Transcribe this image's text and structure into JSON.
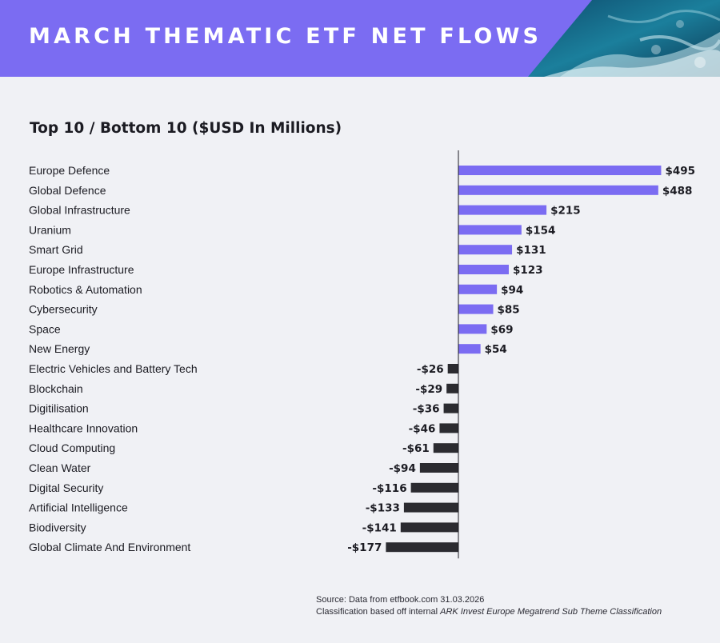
{
  "header": {
    "title": "MARCH THEMATIC ETF NET FLOWS",
    "subtitle": "Top 10 / Bottom 10 ($USD In Millions)"
  },
  "footer": {
    "source": "Source: Data from etfbook.com 31.03.2026",
    "classification_prefix": "Classification based off internal ",
    "classification_emphasis": "ARK Invest Europe Megatrend Sub Theme Classification"
  },
  "colors": {
    "banner": "#7b6cf2",
    "positive": "#7b6cf2",
    "negative": "#2b2b30",
    "background": "#f0f1f5"
  },
  "chart_data": {
    "type": "bar",
    "orientation": "horizontal",
    "title": "Top 10 / Bottom 10 ($USD In Millions)",
    "categories": [
      "Europe Defence",
      "Global Defence",
      "Global Infrastructure",
      "Uranium",
      "Smart Grid",
      "Europe Infrastructure",
      "Robotics & Automation",
      "Cybersecurity",
      "Space",
      "New Energy",
      "Electric Vehicles and Battery Tech",
      "Blockchain",
      "Digitilisation",
      "Healthcare Innovation",
      "Cloud Computing",
      "Clean Water",
      "Digital Security",
      "Artificial Intelligence",
      "Biodiversity",
      "Global Climate And Environment"
    ],
    "values": [
      495,
      488,
      215,
      154,
      131,
      123,
      94,
      85,
      69,
      54,
      -26,
      -29,
      -36,
      -46,
      -61,
      -94,
      -116,
      -133,
      -141,
      -177
    ],
    "data_labels": [
      "$495",
      "$488",
      "$215",
      "$154",
      "$131",
      "$123",
      "$94",
      "$85",
      "$69",
      "$54",
      "-$26",
      "-$29",
      "-$36",
      "-$46",
      "-$61",
      "-$94",
      "-$116",
      "-$133",
      "-$141",
      "-$177"
    ],
    "grid": false,
    "legend": "none"
  }
}
